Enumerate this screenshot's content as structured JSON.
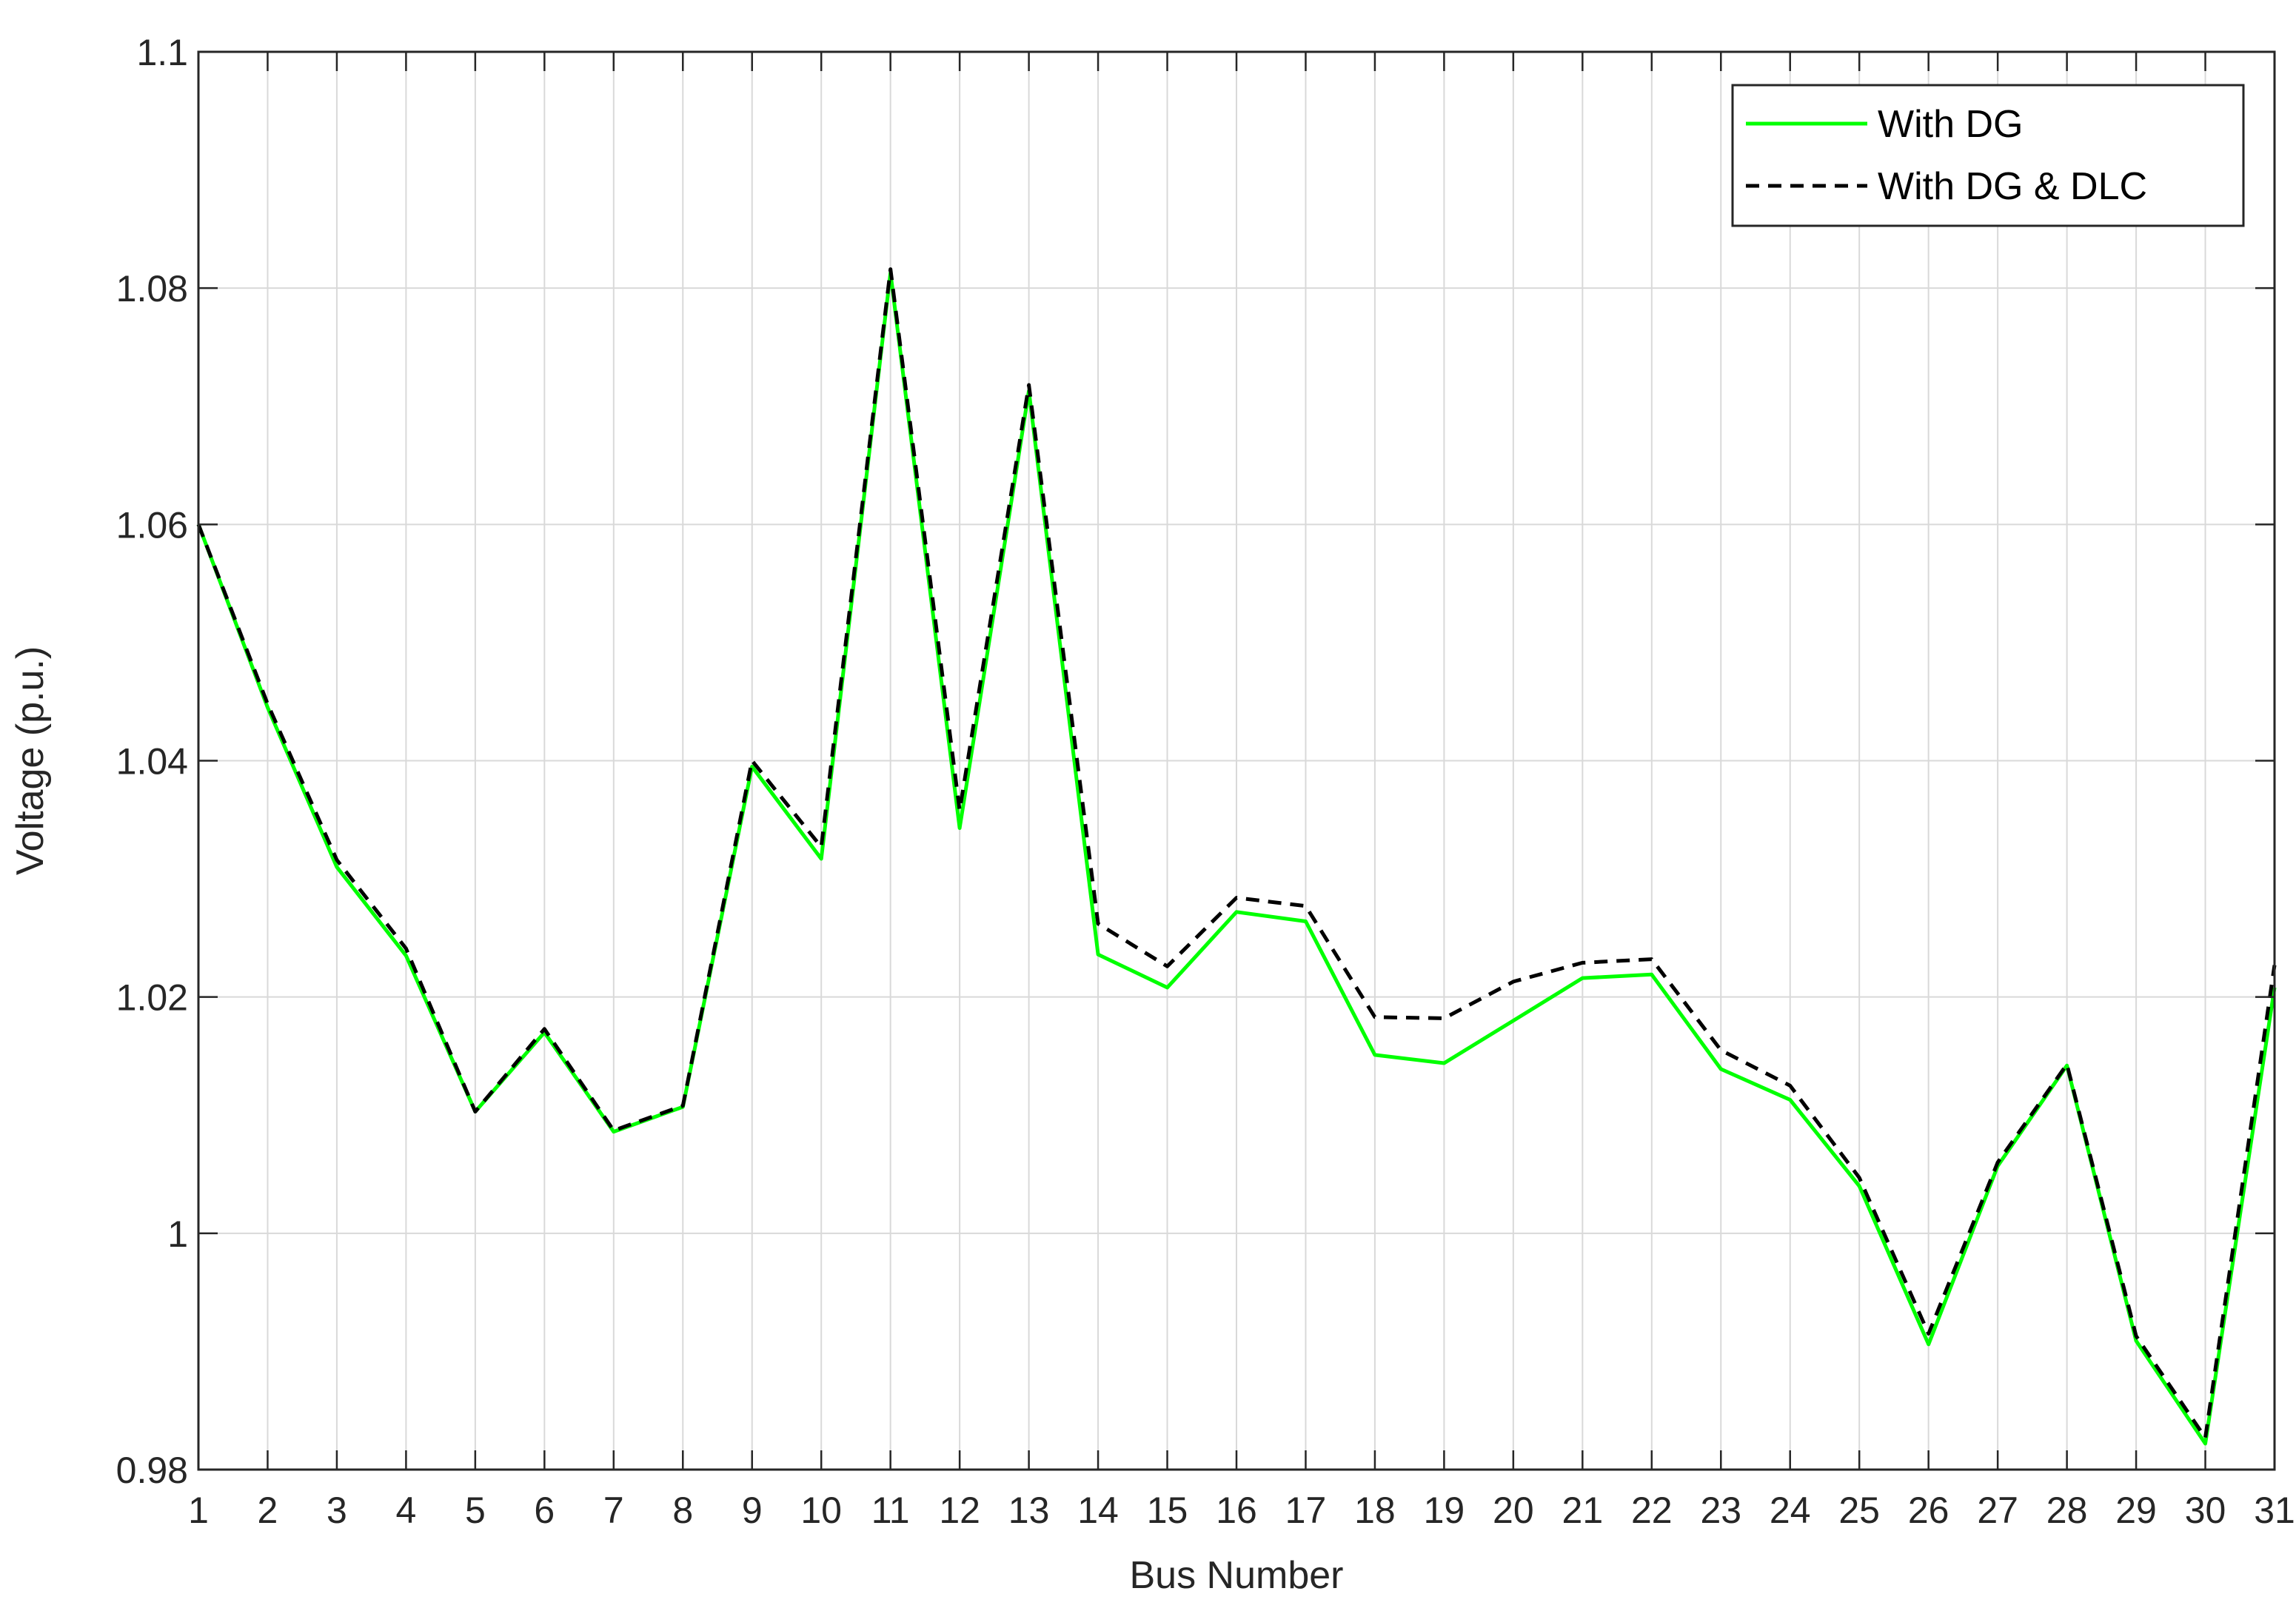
{
  "chart_data": {
    "type": "line",
    "title": "",
    "xlabel": "Bus Number",
    "ylabel": "Voltage (p.u.)",
    "xlim": [
      1,
      31
    ],
    "ylim": [
      0.98,
      1.1
    ],
    "xticks": [
      1,
      2,
      3,
      4,
      5,
      6,
      7,
      8,
      9,
      10,
      11,
      12,
      13,
      14,
      15,
      16,
      17,
      18,
      19,
      20,
      21,
      22,
      23,
      24,
      25,
      26,
      27,
      28,
      29,
      30,
      31
    ],
    "xtick_labels": [
      "1",
      "2",
      "3",
      "4",
      "5",
      "6",
      "7",
      "8",
      "9",
      "10",
      "11",
      "12",
      "13",
      "14",
      "15",
      "16",
      "17",
      "18",
      "19",
      "20",
      "21",
      "22",
      "23",
      "24",
      "25",
      "26",
      "27",
      "28",
      "29",
      "30",
      "31"
    ],
    "yticks": [
      0.98,
      1.0,
      1.02,
      1.04,
      1.06,
      1.08,
      1.1
    ],
    "ytick_labels": [
      "0.98",
      "1",
      "1.02",
      "1.04",
      "1.06",
      "1.08",
      "1.1"
    ],
    "grid": true,
    "legend_position": "top-right",
    "x": [
      1,
      2,
      3,
      4,
      5,
      6,
      7,
      8,
      9,
      10,
      11,
      12,
      13,
      14,
      15,
      16,
      17,
      18,
      19,
      20,
      21,
      22,
      23,
      24,
      25,
      26,
      27,
      28,
      29,
      30,
      31
    ],
    "series": [
      {
        "name": "With DG",
        "color": "#00ff00",
        "style": "solid",
        "values": [
          1.06,
          1.0445,
          1.031,
          1.0235,
          1.0103,
          1.017,
          1.0086,
          1.0107,
          1.0395,
          1.0317,
          1.0813,
          1.0343,
          1.0713,
          1.0236,
          1.0208,
          1.0272,
          1.0264,
          1.0151,
          1.0144,
          1.018,
          1.0216,
          1.0219,
          1.0139,
          1.0113,
          1.004,
          0.9906,
          1.0057,
          1.0142,
          0.9909,
          0.9822,
          1.0208
        ]
      },
      {
        "name": "With DG & DLC",
        "color": "#000000",
        "style": "dashed",
        "values": [
          1.06,
          1.0448,
          1.0316,
          1.0241,
          1.0103,
          1.0173,
          1.0087,
          1.0108,
          1.04,
          1.0327,
          1.0816,
          1.0358,
          1.0718,
          1.0262,
          1.0226,
          1.0284,
          1.0277,
          1.0183,
          1.0182,
          1.0213,
          1.0229,
          1.0232,
          1.0155,
          1.0125,
          1.0047,
          0.9915,
          1.006,
          1.0143,
          0.9913,
          0.9827,
          1.0227
        ]
      }
    ]
  }
}
